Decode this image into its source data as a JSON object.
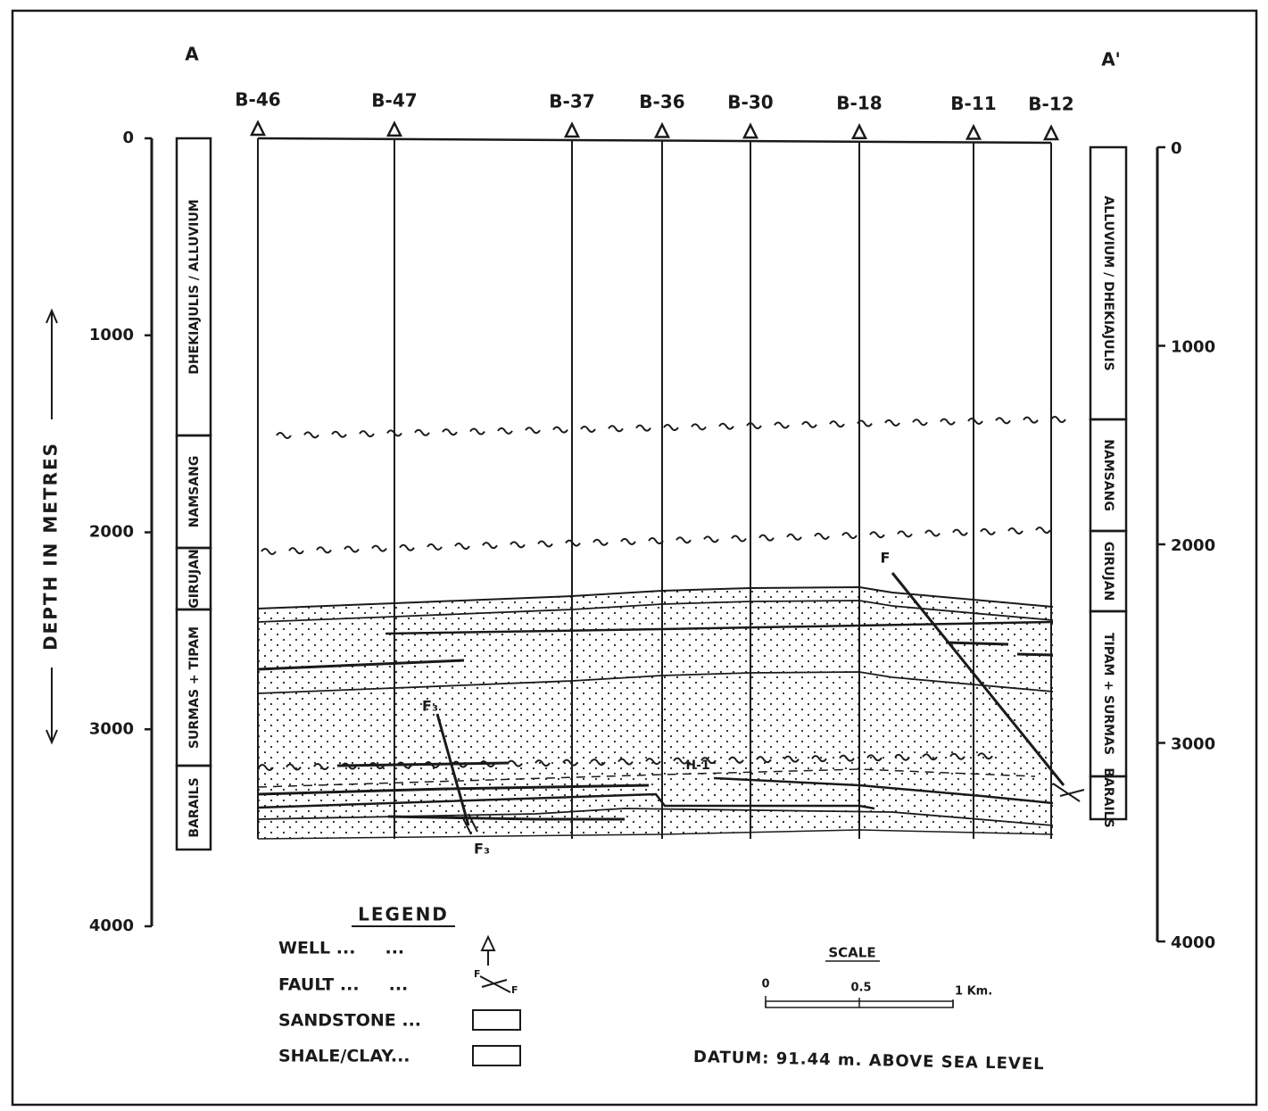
{
  "section": {
    "start_label": "A",
    "end_label": "A'",
    "depth_label": "DEPTH IN METRES"
  },
  "left_axis": {
    "ticks": [
      0,
      1000,
      2000,
      3000,
      4000
    ]
  },
  "right_axis": {
    "ticks": [
      0,
      1000,
      2000,
      3000,
      4000
    ]
  },
  "left_column": [
    "DHEKIAJULIS / ALLUVIUM",
    "NAMSANG",
    "GIRUJAN",
    "SURMAS + TIPAM",
    "BARAILS"
  ],
  "right_column": [
    "ALLUVIUM / DHEKIAJULIS",
    "NAMSANG",
    "GIRUJAN",
    "TIPAM + SURMAS",
    "BARAILS"
  ],
  "wells": [
    "B-46",
    "B-47",
    "B-37",
    "B-36",
    "B-30",
    "B-18",
    "B-11",
    "B-12"
  ],
  "annotations": {
    "fault_upper": "F",
    "fault_lower_top": "F₃",
    "fault_lower_bottom": "F₃",
    "horizon": "H-1"
  },
  "legend": {
    "title": "LEGEND",
    "items": [
      "WELL ...     ...",
      "FAULT ...     ...",
      "SANDSTONE ...",
      "SHALE/CLAY..."
    ]
  },
  "scale": {
    "title": "SCALE",
    "ticks": [
      "0",
      "0.5",
      "1 Km."
    ]
  },
  "datum": "DATUM: 91.44 m. ABOVE SEA LEVEL"
}
